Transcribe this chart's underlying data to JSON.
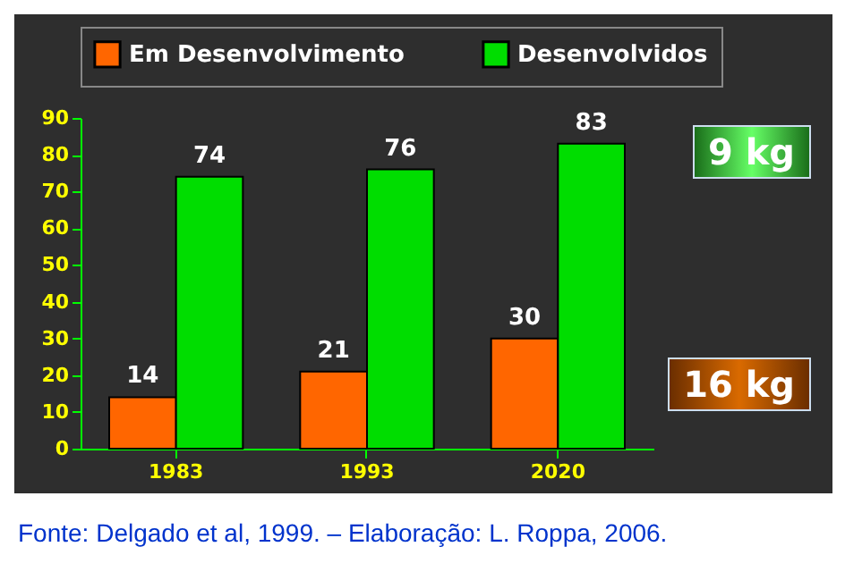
{
  "chart_data": {
    "type": "bar",
    "categories": [
      "1983",
      "1993",
      "2020"
    ],
    "series": [
      {
        "name": "Em Desenvolvimento",
        "color": "#ff6600",
        "values": [
          14,
          21,
          30
        ]
      },
      {
        "name": "Desenvolvidos",
        "color": "#00dd00",
        "values": [
          74,
          76,
          83
        ]
      }
    ],
    "ylim": [
      0,
      90
    ],
    "yticks": [
      0,
      10,
      20,
      30,
      40,
      50,
      60,
      70,
      80,
      90
    ],
    "grid": false,
    "legend": "top",
    "data_labels": true,
    "annotations": [
      "9 kg",
      "16 kg",
      "Fonte: Delgado et al, 1999. – Elaboração: L. Roppa, 2006."
    ]
  }
}
